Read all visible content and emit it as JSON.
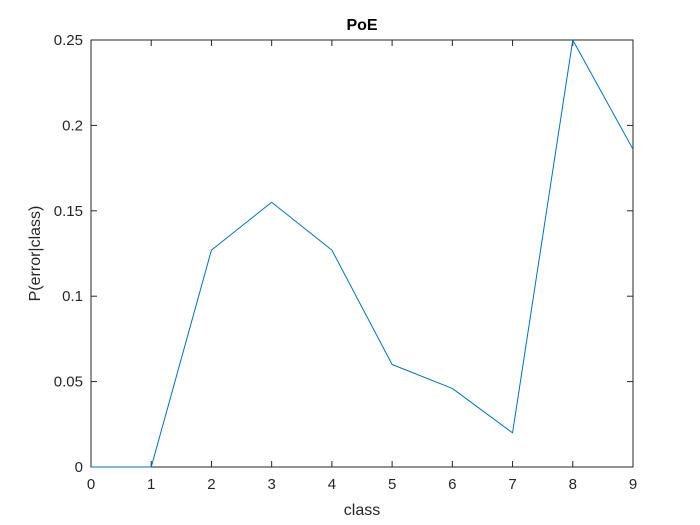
{
  "chart_data": {
    "type": "line",
    "title": "PoE",
    "xlabel": "class",
    "ylabel": "P(error|class)",
    "xlim": [
      0,
      9
    ],
    "ylim": [
      0,
      0.25
    ],
    "x_ticks": [
      0,
      1,
      2,
      3,
      4,
      5,
      6,
      7,
      8,
      9
    ],
    "x_tick_labels": [
      "0",
      "1",
      "2",
      "3",
      "4",
      "5",
      "6",
      "7",
      "8",
      "9"
    ],
    "y_ticks": [
      0,
      0.05,
      0.1,
      0.15,
      0.2,
      0.25
    ],
    "y_tick_labels": [
      "0",
      "0.05",
      "0.1",
      "0.15",
      "0.2",
      "0.25"
    ],
    "grid": false,
    "legend": "none",
    "series": [
      {
        "color": "#0072BD",
        "x": [
          0,
          1,
          2,
          3,
          4,
          5,
          6,
          7,
          8,
          9
        ],
        "y": [
          0,
          0,
          0.127,
          0.155,
          0.127,
          0.06,
          0.046,
          0.02,
          0.25,
          0.186
        ]
      }
    ]
  }
}
